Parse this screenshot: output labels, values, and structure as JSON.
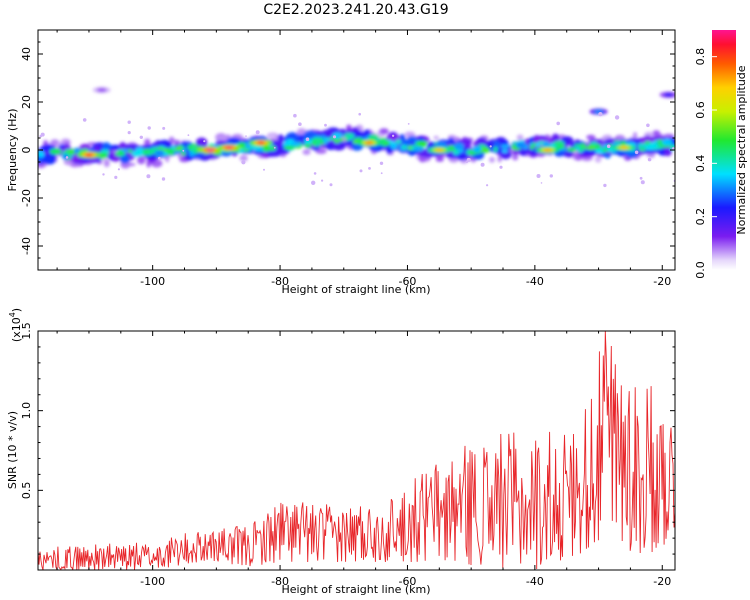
{
  "title": "C2E2.2023.241.20.43.G19",
  "chart_data": [
    {
      "type": "heatmap",
      "panel": "spectrogram",
      "xlabel": "Height of straight line (km)",
      "ylabel": "Frequency (Hz)",
      "xlim": [
        -118,
        -18
      ],
      "ylim": [
        -50,
        50
      ],
      "xticks": [
        -100,
        -80,
        -60,
        -40,
        -20
      ],
      "yticks": [
        -40,
        -20,
        0,
        20,
        40
      ],
      "xtick_labels": [
        "-100",
        "-80",
        "-60",
        "-40",
        "-20"
      ],
      "ytick_labels": [
        "-40",
        "-20",
        "0",
        "20",
        "40"
      ],
      "colorbar": {
        "label": "Normalized spectral amplitude",
        "range": [
          0,
          0.9
        ],
        "ticks": [
          0.0,
          0.2,
          0.4,
          0.6,
          0.8
        ],
        "tick_labels": [
          "0.0",
          "0.2",
          "0.4",
          "0.6",
          "0.8"
        ]
      },
      "band_center_hz": [
        {
          "x": -118,
          "y": -2
        },
        {
          "x": -100,
          "y": -1
        },
        {
          "x": -80,
          "y": 2
        },
        {
          "x": -70,
          "y": 5
        },
        {
          "x": -60,
          "y": 2
        },
        {
          "x": -50,
          "y": 0
        },
        {
          "x": -40,
          "y": 2
        },
        {
          "x": -30,
          "y": 1
        },
        {
          "x": -20,
          "y": 2
        }
      ],
      "hot_spots": [
        {
          "x": -110,
          "y": -2,
          "v": 0.85
        },
        {
          "x": -91,
          "y": 0,
          "v": 0.9
        },
        {
          "x": -88,
          "y": 1,
          "v": 0.88
        },
        {
          "x": -83,
          "y": 3,
          "v": 0.85
        },
        {
          "x": -66,
          "y": 3,
          "v": 0.75
        },
        {
          "x": -55,
          "y": 0,
          "v": 0.7
        },
        {
          "x": -38,
          "y": 0,
          "v": 0.72
        },
        {
          "x": -26,
          "y": 1,
          "v": 0.7
        }
      ],
      "secondary_features": [
        {
          "x": -30,
          "y": 16,
          "v": 0.3
        },
        {
          "x": -19,
          "y": 23,
          "v": 0.2
        },
        {
          "x": -108,
          "y": 25,
          "v": 0.1
        }
      ]
    },
    {
      "type": "line",
      "panel": "snr",
      "xlabel": "Height of straight line (km)",
      "ylabel": "SNR (10 * v/v)",
      "scale_label": "(x10",
      "scale_exponent": "4",
      "scale_suffix": ")",
      "xlim": [
        -118,
        -18
      ],
      "ylim": [
        0,
        1.5
      ],
      "xticks": [
        -100,
        -80,
        -60,
        -40,
        -20
      ],
      "yticks": [
        0.5,
        1.0,
        1.5
      ],
      "xtick_labels": [
        "-100",
        "-80",
        "-60",
        "-40",
        "-20"
      ],
      "ytick_labels": [
        "0.5",
        "1.0",
        "1.5"
      ],
      "color": "#e8262a",
      "envelope": [
        {
          "x": -118,
          "min": 0.0,
          "max": 0.14
        },
        {
          "x": -110,
          "min": 0.0,
          "max": 0.16
        },
        {
          "x": -100,
          "min": 0.0,
          "max": 0.18
        },
        {
          "x": -92,
          "min": 0.05,
          "max": 0.26
        },
        {
          "x": -85,
          "min": 0.02,
          "max": 0.28
        },
        {
          "x": -80,
          "min": 0.05,
          "max": 0.45
        },
        {
          "x": -70,
          "min": 0.05,
          "max": 0.4
        },
        {
          "x": -62,
          "min": 0.05,
          "max": 0.48
        },
        {
          "x": -55,
          "min": 0.05,
          "max": 0.72
        },
        {
          "x": -47,
          "min": 0.02,
          "max": 0.87
        },
        {
          "x": -40,
          "min": 0.0,
          "max": 0.86
        },
        {
          "x": -33,
          "min": 0.1,
          "max": 0.92
        },
        {
          "x": -29,
          "min": 0.2,
          "max": 1.5
        },
        {
          "x": -24,
          "min": 0.05,
          "max": 1.28
        },
        {
          "x": -18,
          "min": 0.2,
          "max": 0.98
        }
      ]
    }
  ]
}
